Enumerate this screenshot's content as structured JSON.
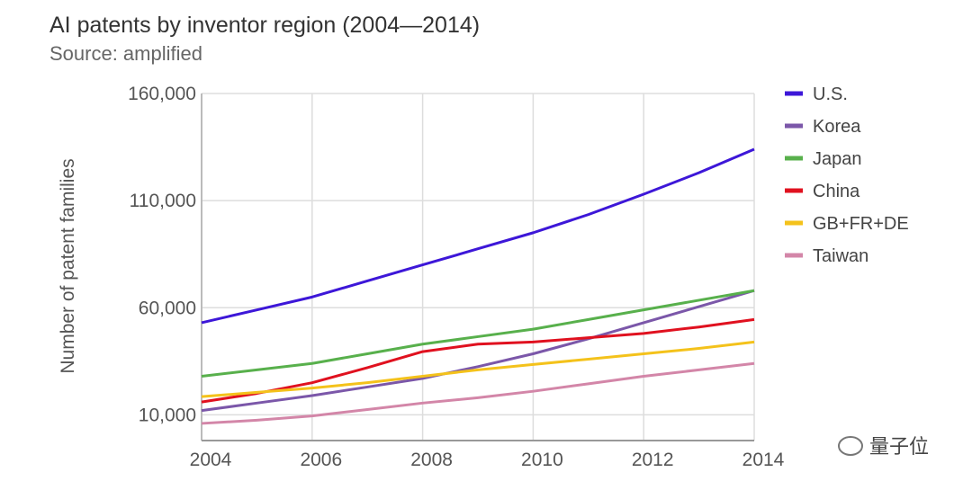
{
  "chart_data": {
    "type": "line",
    "title": "AI patents by inventor region (2004—2014)",
    "subtitle": "Source: amplified",
    "y_label": "Number of patent families",
    "x": [
      2004,
      2005,
      2006,
      2007,
      2008,
      2009,
      2010,
      2011,
      2012,
      2013,
      2014
    ],
    "series": [
      {
        "name": "U.S.",
        "color": "#3d17d8",
        "values": [
          53000,
          59000,
          65000,
          72500,
          80000,
          87500,
          95000,
          103500,
          113000,
          123000,
          134000
        ]
      },
      {
        "name": "Korea",
        "color": "#7b57a9",
        "values": [
          12000,
          15500,
          19000,
          23000,
          27000,
          32500,
          38500,
          45500,
          53000,
          60500,
          68000
        ]
      },
      {
        "name": "Japan",
        "color": "#58b04c",
        "values": [
          28000,
          31000,
          34000,
          38500,
          43000,
          46500,
          50000,
          54500,
          59000,
          63500,
          68000
        ]
      },
      {
        "name": "China",
        "color": "#e0111f",
        "values": [
          16000,
          20000,
          25000,
          32000,
          39500,
          43000,
          44000,
          46000,
          48000,
          51000,
          54500
        ]
      },
      {
        "name": "GB+FR+DE",
        "color": "#f4c21b",
        "values": [
          18500,
          20500,
          22500,
          25000,
          28000,
          31000,
          33500,
          36000,
          38500,
          41000,
          44000
        ]
      },
      {
        "name": "Taiwan",
        "color": "#d386a8",
        "values": [
          6000,
          7500,
          9500,
          12500,
          15500,
          18000,
          21000,
          24500,
          28000,
          31000,
          34000
        ]
      }
    ],
    "xlim": [
      2004,
      2014
    ],
    "xticks": [
      2004,
      2006,
      2008,
      2010,
      2012,
      2014
    ],
    "ylim": [
      -2000,
      160000
    ],
    "yticks": [
      {
        "value": 10000,
        "label": "10,000"
      },
      {
        "value": 60000,
        "label": "60,000"
      },
      {
        "value": 110000,
        "label": "110,000"
      },
      {
        "value": 160000,
        "label": "160,000"
      }
    ],
    "grid": true,
    "legend": "right",
    "watermark": "量子位"
  }
}
